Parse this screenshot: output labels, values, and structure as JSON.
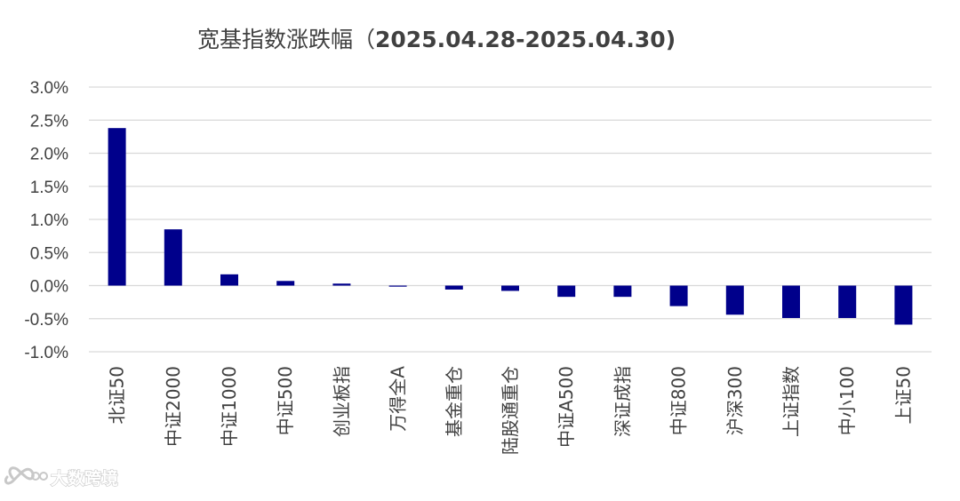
{
  "chart_data": {
    "type": "bar",
    "title": "宽基指数涨跌幅（2025.04.28-2025.04.30)",
    "title_parts": {
      "main": "宽基指数涨跌幅（",
      "date": "2025.04.28-2025.04.30)"
    },
    "categories": [
      "北证50",
      "中证2000",
      "中证1000",
      "中证500",
      "创业板指",
      "万得全A",
      "基金重仓",
      "陆股通重仓",
      "中证A500",
      "深证成指",
      "中证800",
      "沪深300",
      "上证指数",
      "中小100",
      "上证50"
    ],
    "values": [
      2.38,
      0.85,
      0.17,
      0.07,
      0.03,
      -0.01,
      -0.06,
      -0.08,
      -0.17,
      -0.17,
      -0.31,
      -0.44,
      -0.49,
      -0.49,
      -0.59
    ],
    "value_unit": "%",
    "ylim": [
      -1.0,
      3.0
    ],
    "yticks": [
      3.0,
      2.5,
      2.0,
      1.5,
      1.0,
      0.5,
      0.0,
      -0.5,
      -1.0
    ],
    "ytick_labels": [
      "3.0%",
      "2.5%",
      "2.0%",
      "1.5%",
      "1.0%",
      "0.5%",
      "0.0%",
      "-0.5%",
      "-1.0%"
    ],
    "xlabel": "",
    "ylabel": "",
    "grid": true,
    "legend": "none",
    "bar_color": "#00008b",
    "grid_color": "#d9d9d9",
    "text_color": "#404040"
  },
  "watermark": {
    "text": "大数跨境",
    "icon": "infinity-logo-icon"
  }
}
